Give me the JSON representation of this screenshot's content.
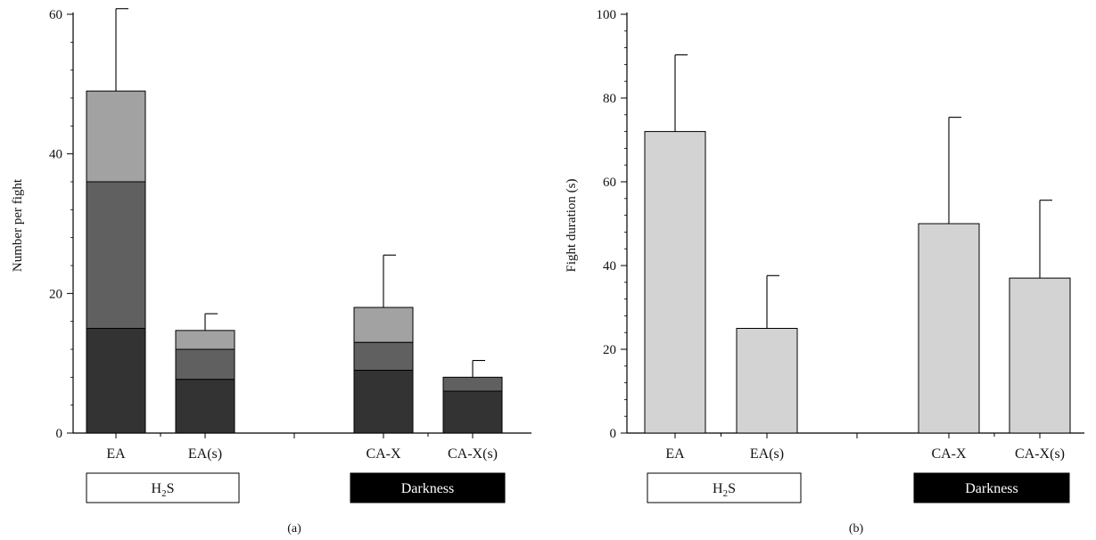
{
  "chart_data": [
    {
      "panel_label": "(a)",
      "type": "bar",
      "stacked": true,
      "ylabel": "Number per fight",
      "ylim": [
        0,
        60
      ],
      "yticks": [
        0,
        20,
        40,
        60
      ],
      "grid": false,
      "categories": [
        "EA",
        "EA(s)",
        "CA-X",
        "CA-X(s)"
      ],
      "series": [
        {
          "values": [
            15,
            7.7,
            9,
            6
          ],
          "color": "#333333"
        },
        {
          "values": [
            21,
            4.3,
            4,
            2
          ],
          "color": "#606060"
        },
        {
          "values": [
            13,
            2.7,
            5,
            0
          ],
          "color": "#a2a2a2"
        }
      ],
      "totals": [
        49,
        14.7,
        18,
        8
      ],
      "error_bars": [
        60.8,
        17.1,
        25.5,
        10.4
      ],
      "groups": [
        {
          "label_main": "H",
          "label_sub": "2",
          "label_tail": "S",
          "style": "outline"
        },
        {
          "label_main": "Darkness",
          "label_sub": "",
          "label_tail": "",
          "style": "filled"
        }
      ]
    },
    {
      "panel_label": "(b)",
      "type": "bar",
      "ylabel": "Fight duration (s)",
      "ylim": [
        0,
        100
      ],
      "yticks": [
        0,
        20,
        40,
        60,
        80,
        100
      ],
      "grid": false,
      "categories": [
        "EA",
        "EA(s)",
        "CA-X",
        "CA-X(s)"
      ],
      "values": [
        72,
        25,
        50,
        37
      ],
      "error_bars": [
        90.3,
        37.6,
        75.4,
        55.6
      ],
      "color": "#d3d3d3",
      "groups": [
        {
          "label_main": "H",
          "label_sub": "2",
          "label_tail": "S",
          "style": "outline"
        },
        {
          "label_main": "Darkness",
          "label_sub": "",
          "label_tail": "",
          "style": "filled"
        }
      ]
    }
  ]
}
